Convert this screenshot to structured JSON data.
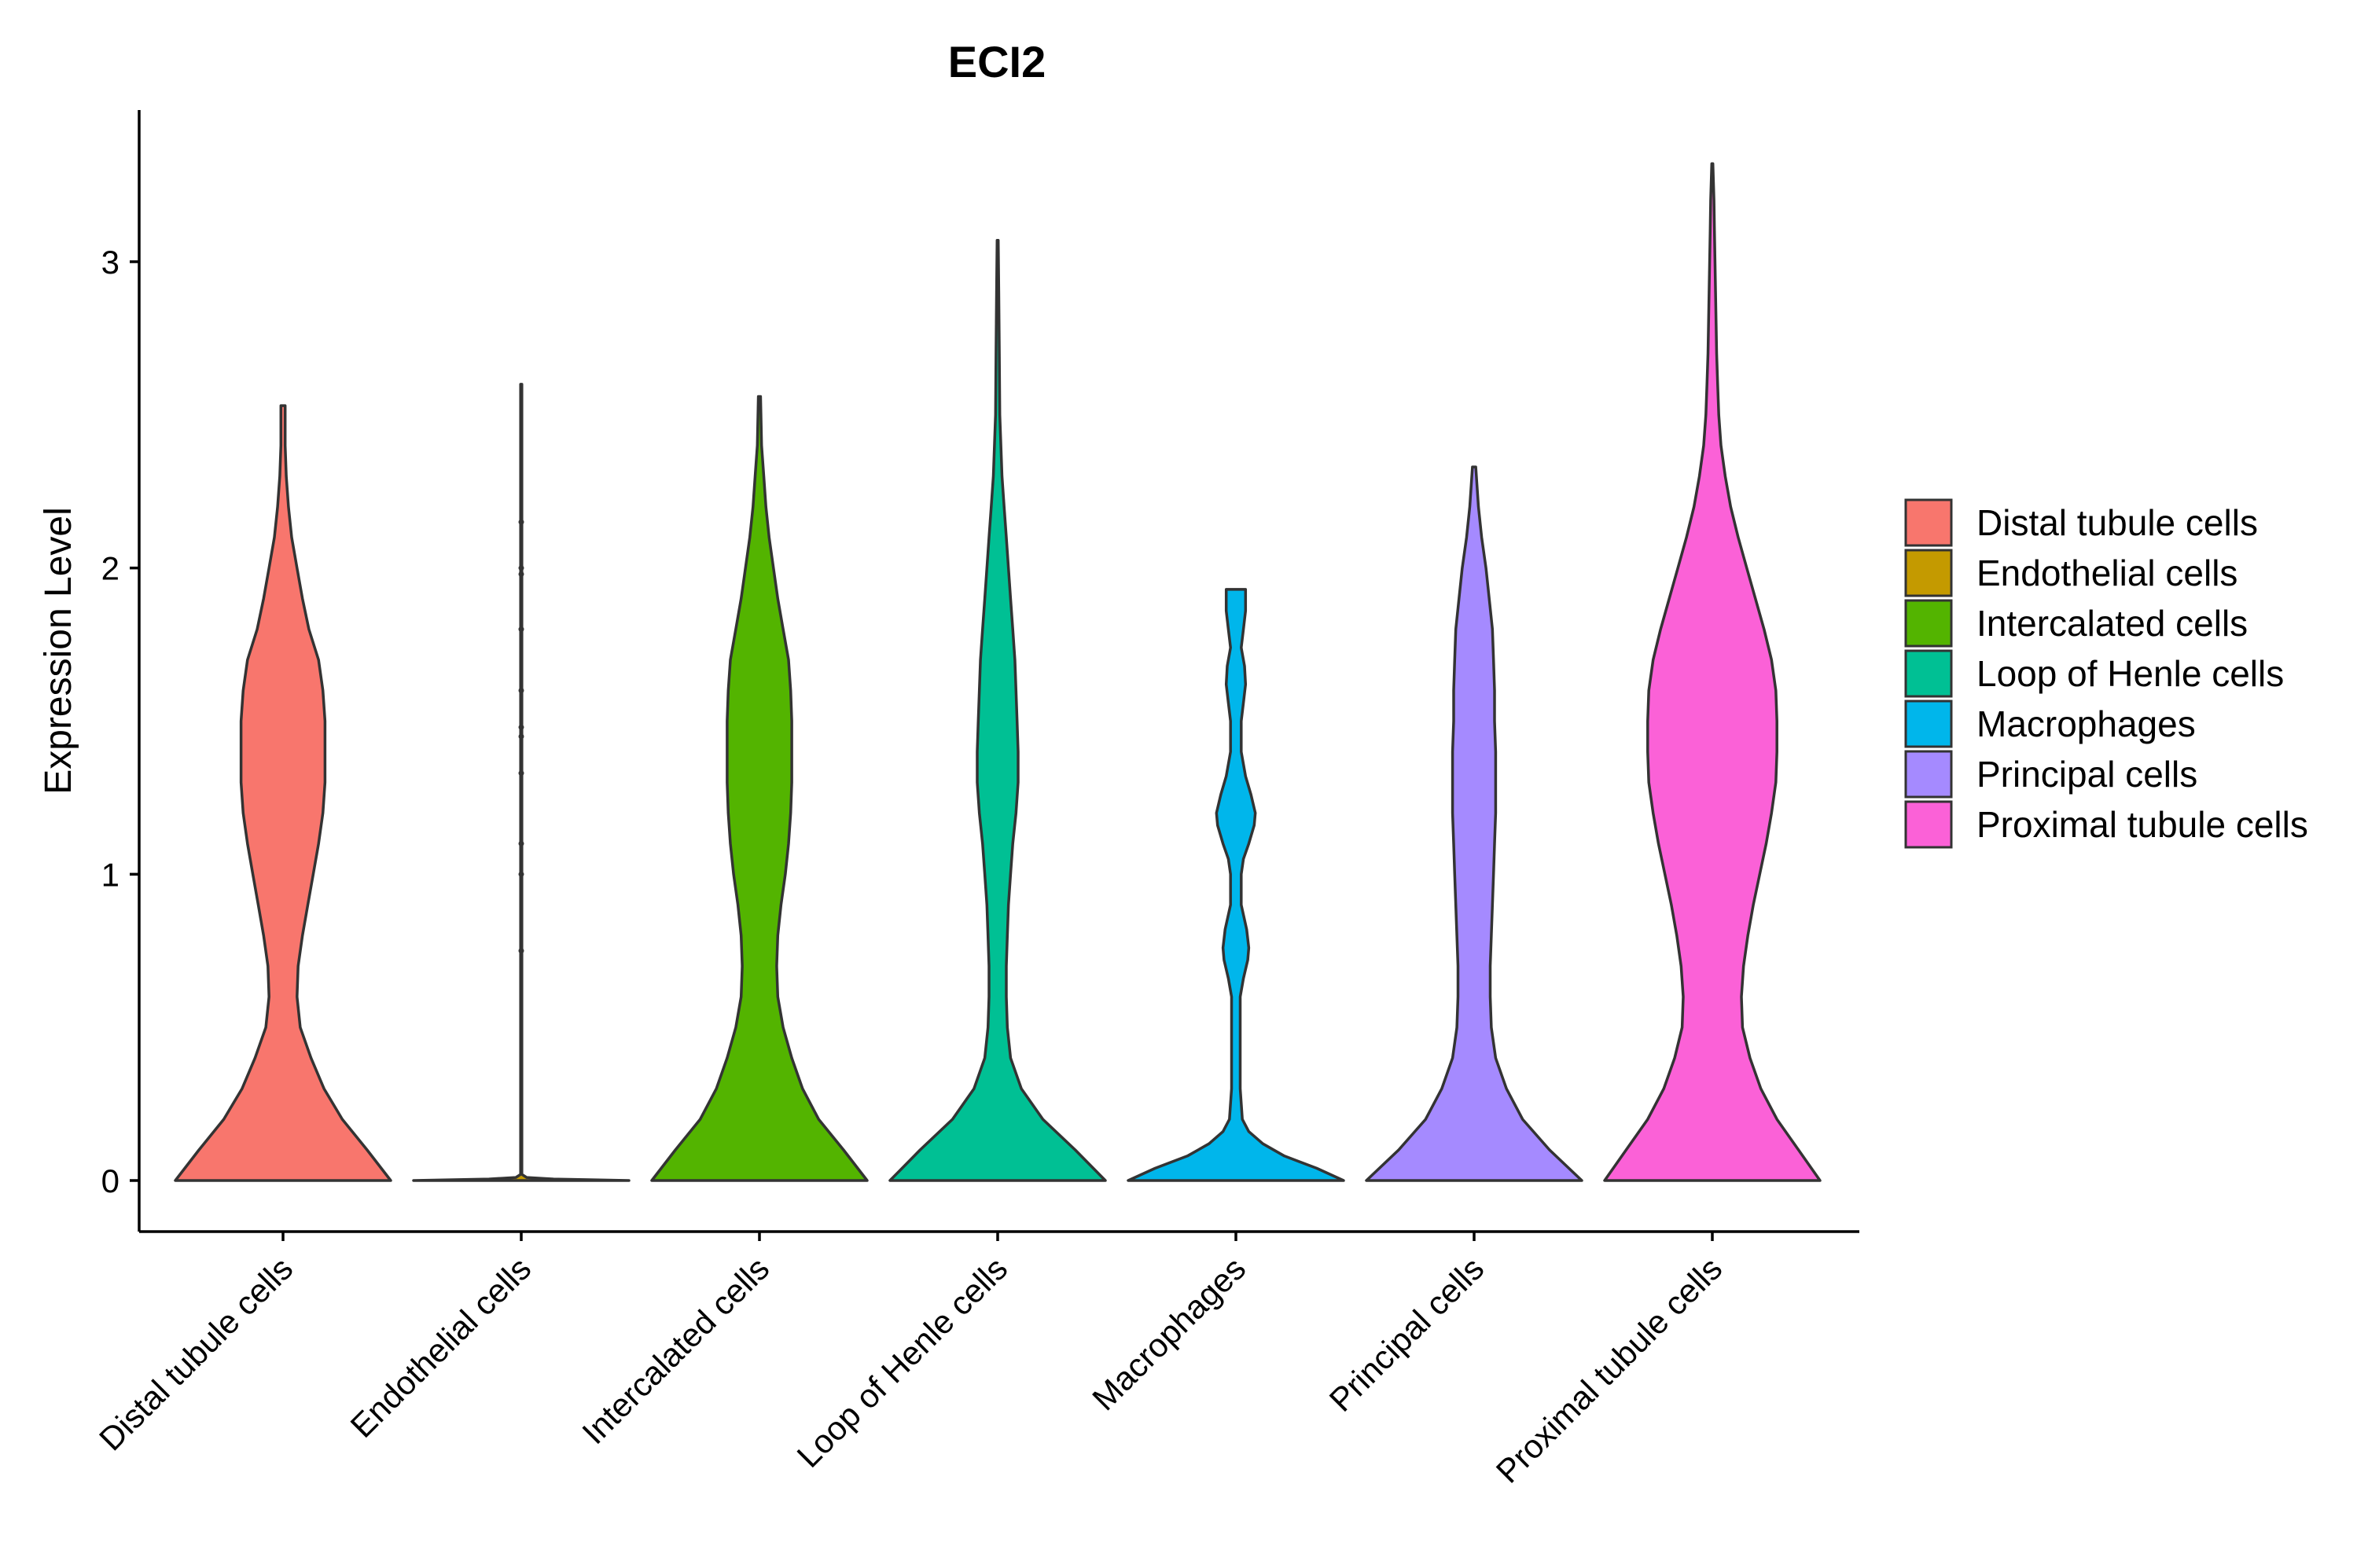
{
  "chart_data": {
    "type": "violin",
    "title": "ECI2",
    "xlabel": "",
    "ylabel": "Expression Level",
    "ylim": [
      -0.16,
      3.5
    ],
    "yticks": [
      0,
      1,
      2,
      3
    ],
    "grid": false,
    "legend_position": "right",
    "categories": [
      "Distal tubule cells",
      "Endothelial cells",
      "Intercalated cells",
      "Loop of Henle cells",
      "Macrophages",
      "Principal cells",
      "Proximal tubule cells"
    ],
    "series": [
      {
        "name": "Distal tubule cells",
        "color": "#F8766D",
        "max": 2.53,
        "density": [
          [
            0,
            1.0
          ],
          [
            0.1,
            0.78
          ],
          [
            0.2,
            0.55
          ],
          [
            0.3,
            0.38
          ],
          [
            0.4,
            0.26
          ],
          [
            0.5,
            0.16
          ],
          [
            0.6,
            0.13
          ],
          [
            0.7,
            0.14
          ],
          [
            0.8,
            0.18
          ],
          [
            0.9,
            0.23
          ],
          [
            1.0,
            0.28
          ],
          [
            1.1,
            0.33
          ],
          [
            1.2,
            0.37
          ],
          [
            1.3,
            0.39
          ],
          [
            1.4,
            0.39
          ],
          [
            1.5,
            0.39
          ],
          [
            1.6,
            0.37
          ],
          [
            1.7,
            0.33
          ],
          [
            1.8,
            0.24
          ],
          [
            1.9,
            0.18
          ],
          [
            2.0,
            0.13
          ],
          [
            2.1,
            0.08
          ],
          [
            2.2,
            0.05
          ],
          [
            2.3,
            0.03
          ],
          [
            2.4,
            0.02
          ],
          [
            2.53,
            0.02
          ]
        ]
      },
      {
        "name": "Endothelial cells",
        "color": "#C49A00",
        "max": 2.6,
        "density": [
          [
            0,
            1.0
          ],
          [
            0.005,
            0.3
          ],
          [
            0.01,
            0.05
          ],
          [
            0.02,
            0.006
          ],
          [
            0.5,
            0.006
          ],
          [
            1.0,
            0.006
          ],
          [
            1.5,
            0.006
          ],
          [
            2.0,
            0.006
          ],
          [
            2.6,
            0.006
          ]
        ]
      },
      {
        "name": "Intercalated cells",
        "color": "#53B400",
        "max": 2.56,
        "density": [
          [
            0,
            1.0
          ],
          [
            0.1,
            0.78
          ],
          [
            0.2,
            0.55
          ],
          [
            0.3,
            0.4
          ],
          [
            0.4,
            0.3
          ],
          [
            0.5,
            0.22
          ],
          [
            0.6,
            0.17
          ],
          [
            0.7,
            0.16
          ],
          [
            0.8,
            0.17
          ],
          [
            0.9,
            0.2
          ],
          [
            1.0,
            0.24
          ],
          [
            1.1,
            0.27
          ],
          [
            1.2,
            0.29
          ],
          [
            1.3,
            0.3
          ],
          [
            1.4,
            0.3
          ],
          [
            1.5,
            0.3
          ],
          [
            1.6,
            0.29
          ],
          [
            1.7,
            0.27
          ],
          [
            1.8,
            0.22
          ],
          [
            1.9,
            0.17
          ],
          [
            2.0,
            0.13
          ],
          [
            2.1,
            0.09
          ],
          [
            2.2,
            0.06
          ],
          [
            2.3,
            0.04
          ],
          [
            2.4,
            0.02
          ],
          [
            2.56,
            0.01
          ]
        ]
      },
      {
        "name": "Loop of Henle cells",
        "color": "#00C094",
        "max": 3.07,
        "density": [
          [
            0,
            1.0
          ],
          [
            0.1,
            0.72
          ],
          [
            0.2,
            0.42
          ],
          [
            0.3,
            0.22
          ],
          [
            0.4,
            0.12
          ],
          [
            0.5,
            0.09
          ],
          [
            0.6,
            0.08
          ],
          [
            0.7,
            0.08
          ],
          [
            0.8,
            0.09
          ],
          [
            0.9,
            0.1
          ],
          [
            1.0,
            0.12
          ],
          [
            1.1,
            0.14
          ],
          [
            1.2,
            0.17
          ],
          [
            1.3,
            0.19
          ],
          [
            1.4,
            0.19
          ],
          [
            1.5,
            0.18
          ],
          [
            1.6,
            0.17
          ],
          [
            1.7,
            0.16
          ],
          [
            1.8,
            0.14
          ],
          [
            1.9,
            0.12
          ],
          [
            2.0,
            0.1
          ],
          [
            2.1,
            0.08
          ],
          [
            2.2,
            0.06
          ],
          [
            2.3,
            0.04
          ],
          [
            2.5,
            0.02
          ],
          [
            2.7,
            0.015
          ],
          [
            2.9,
            0.01
          ],
          [
            3.07,
            0.005
          ]
        ]
      },
      {
        "name": "Macrophages",
        "color": "#00B6EB",
        "max": 1.93,
        "density": [
          [
            0,
            1.0
          ],
          [
            0.04,
            0.75
          ],
          [
            0.08,
            0.45
          ],
          [
            0.12,
            0.25
          ],
          [
            0.16,
            0.12
          ],
          [
            0.2,
            0.06
          ],
          [
            0.3,
            0.04
          ],
          [
            0.4,
            0.04
          ],
          [
            0.5,
            0.04
          ],
          [
            0.6,
            0.04
          ],
          [
            0.66,
            0.07
          ],
          [
            0.72,
            0.11
          ],
          [
            0.76,
            0.12
          ],
          [
            0.82,
            0.1
          ],
          [
            0.9,
            0.05
          ],
          [
            1.0,
            0.05
          ],
          [
            1.05,
            0.07
          ],
          [
            1.1,
            0.12
          ],
          [
            1.16,
            0.17
          ],
          [
            1.2,
            0.18
          ],
          [
            1.26,
            0.14
          ],
          [
            1.32,
            0.09
          ],
          [
            1.4,
            0.05
          ],
          [
            1.5,
            0.05
          ],
          [
            1.56,
            0.07
          ],
          [
            1.62,
            0.09
          ],
          [
            1.68,
            0.08
          ],
          [
            1.74,
            0.05
          ],
          [
            1.8,
            0.07
          ],
          [
            1.86,
            0.09
          ],
          [
            1.93,
            0.09
          ]
        ]
      },
      {
        "name": "Principal cells",
        "color": "#A58AFF",
        "max": 2.33,
        "density": [
          [
            0,
            1.0
          ],
          [
            0.1,
            0.7
          ],
          [
            0.2,
            0.45
          ],
          [
            0.3,
            0.3
          ],
          [
            0.4,
            0.2
          ],
          [
            0.5,
            0.16
          ],
          [
            0.6,
            0.15
          ],
          [
            0.7,
            0.15
          ],
          [
            0.8,
            0.16
          ],
          [
            0.9,
            0.17
          ],
          [
            1.0,
            0.18
          ],
          [
            1.1,
            0.19
          ],
          [
            1.2,
            0.2
          ],
          [
            1.3,
            0.2
          ],
          [
            1.4,
            0.2
          ],
          [
            1.5,
            0.19
          ],
          [
            1.6,
            0.19
          ],
          [
            1.7,
            0.18
          ],
          [
            1.8,
            0.17
          ],
          [
            1.9,
            0.14
          ],
          [
            2.0,
            0.11
          ],
          [
            2.1,
            0.07
          ],
          [
            2.2,
            0.04
          ],
          [
            2.33,
            0.015
          ]
        ]
      },
      {
        "name": "Proximal tubule cells",
        "color": "#FB61D7",
        "max": 3.32,
        "density": [
          [
            0,
            1.0
          ],
          [
            0.1,
            0.8
          ],
          [
            0.2,
            0.6
          ],
          [
            0.3,
            0.45
          ],
          [
            0.4,
            0.35
          ],
          [
            0.5,
            0.28
          ],
          [
            0.6,
            0.27
          ],
          [
            0.7,
            0.29
          ],
          [
            0.8,
            0.33
          ],
          [
            0.9,
            0.38
          ],
          [
            1.0,
            0.44
          ],
          [
            1.1,
            0.5
          ],
          [
            1.2,
            0.55
          ],
          [
            1.3,
            0.59
          ],
          [
            1.4,
            0.6
          ],
          [
            1.5,
            0.6
          ],
          [
            1.6,
            0.59
          ],
          [
            1.7,
            0.55
          ],
          [
            1.8,
            0.48
          ],
          [
            1.9,
            0.4
          ],
          [
            2.0,
            0.32
          ],
          [
            2.1,
            0.24
          ],
          [
            2.2,
            0.17
          ],
          [
            2.3,
            0.12
          ],
          [
            2.4,
            0.08
          ],
          [
            2.5,
            0.06
          ],
          [
            2.6,
            0.05
          ],
          [
            2.7,
            0.04
          ],
          [
            2.8,
            0.035
          ],
          [
            2.9,
            0.03
          ],
          [
            3.0,
            0.025
          ],
          [
            3.1,
            0.02
          ],
          [
            3.2,
            0.015
          ],
          [
            3.32,
            0.005
          ]
        ]
      }
    ],
    "points": {
      "Endothelial cells": [
        0.75,
        1.0,
        1.1,
        1.33,
        1.45,
        1.48,
        1.6,
        1.8,
        1.98,
        2.0,
        2.15
      ]
    }
  }
}
